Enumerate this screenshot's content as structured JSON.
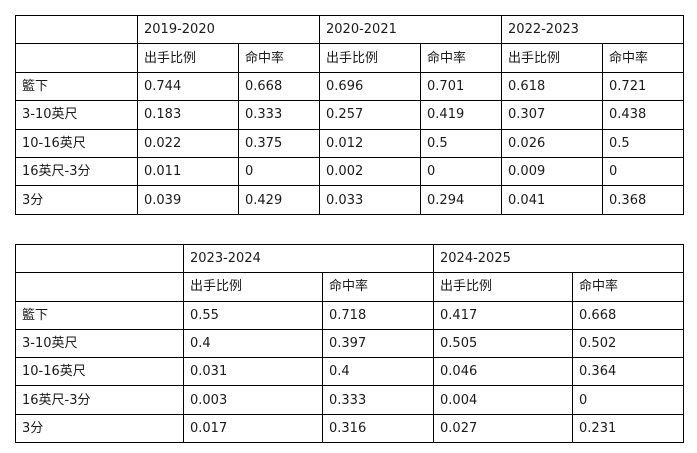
{
  "table1": {
    "years": [
      "2019-2020",
      "2020-2021",
      "2022-2023"
    ],
    "subheaders": [
      "出手比例",
      "命中率",
      "出手比例",
      "命中率",
      "出手比例",
      "命中率"
    ],
    "rows": [
      {
        "label": "籃下",
        "values": [
          "0.744",
          "0.668",
          "0.696",
          "0.701",
          "0.618",
          "0.721"
        ]
      },
      {
        "label": "3-10英尺",
        "values": [
          "0.183",
          "0.333",
          "0.257",
          "0.419",
          "0.307",
          "0.438"
        ]
      },
      {
        "label": "10-16英尺",
        "values": [
          "0.022",
          "0.375",
          "0.012",
          "0.5",
          "0.026",
          "0.5"
        ]
      },
      {
        "label": "16英尺-3分",
        "values": [
          "0.011",
          "0",
          "0.002",
          "0",
          "0.009",
          "0"
        ]
      },
      {
        "label": "3分",
        "values": [
          "0.039",
          "0.429",
          "0.033",
          "0.294",
          "0.041",
          "0.368"
        ]
      }
    ]
  },
  "table2": {
    "years": [
      "2023-2024",
      "2024-2025"
    ],
    "subheaders": [
      "出手比例",
      "命中率",
      "出手比例",
      "命中率"
    ],
    "rows": [
      {
        "label": "籃下",
        "values": [
          "0.55",
          "0.718",
          "0.417",
          "0.668"
        ]
      },
      {
        "label": "3-10英尺",
        "values": [
          "0.4",
          "0.397",
          "0.505",
          "0.502"
        ]
      },
      {
        "label": "10-16英尺",
        "values": [
          "0.031",
          "0.4",
          "0.046",
          "0.364"
        ]
      },
      {
        "label": "16英尺-3分",
        "values": [
          "0.003",
          "0.333",
          "0.004",
          "0"
        ]
      },
      {
        "label": "3分",
        "values": [
          "0.017",
          "0.316",
          "0.027",
          "0.231"
        ]
      }
    ]
  }
}
